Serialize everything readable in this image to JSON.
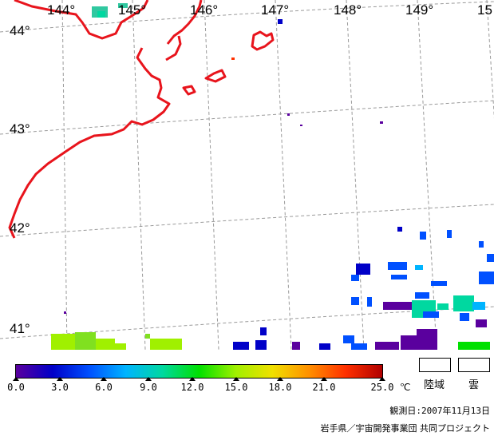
{
  "map": {
    "longitude_labels": [
      "144°",
      "145°",
      "146°",
      "147°",
      "148°",
      "149°",
      "15"
    ],
    "latitude_labels": [
      "44°",
      "43°",
      "42°",
      "41°"
    ],
    "coastline_color": "#e8141c",
    "grid_color": "#9a9a9a",
    "sst_range_degC": [
      0,
      25
    ]
  },
  "legend": {
    "ticks": [
      "0.0",
      "3.0",
      "6.0",
      "9.0",
      "12.0",
      "15.0",
      "18.0",
      "21.0",
      "25.0"
    ],
    "unit": "℃",
    "land_label": "陸域",
    "cloud_label": "雲",
    "colors": [
      "#5a009e",
      "#0000c8",
      "#0050ff",
      "#00b4ff",
      "#00d8a0",
      "#00e000",
      "#a0f000",
      "#f0e000",
      "#ff9000",
      "#ff3000",
      "#b00000"
    ]
  },
  "observation_date": "観測日:2007年11月13日",
  "credit": "岩手県／宇宙開発事業団 共同プロジェクト"
}
